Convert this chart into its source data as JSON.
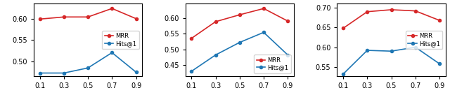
{
  "x": [
    0.1,
    0.3,
    0.5,
    0.7,
    0.9
  ],
  "plots": [
    {
      "mrr": [
        0.599,
        0.604,
        0.604,
        0.624,
        0.6
      ],
      "hits1": [
        0.472,
        0.472,
        0.484,
        0.52,
        0.474
      ],
      "ylim": [
        0.465,
        0.635
      ],
      "yticks": [
        0.5,
        0.55,
        0.6
      ],
      "legend_loc": "center right"
    },
    {
      "mrr": [
        0.535,
        0.588,
        0.61,
        0.63,
        0.59
      ],
      "hits1": [
        0.43,
        0.482,
        0.522,
        0.554,
        0.482
      ],
      "ylim": [
        0.415,
        0.645
      ],
      "yticks": [
        0.45,
        0.5,
        0.55,
        0.6
      ],
      "legend_loc": "lower right"
    },
    {
      "mrr": [
        0.648,
        0.69,
        0.695,
        0.692,
        0.668
      ],
      "hits1": [
        0.532,
        0.592,
        0.59,
        0.6,
        0.558
      ],
      "ylim": [
        0.527,
        0.71
      ],
      "yticks": [
        0.55,
        0.6,
        0.65,
        0.7
      ],
      "legend_loc": "center right"
    }
  ],
  "mrr_color": "#d62728",
  "hits1_color": "#1f77b4",
  "marker": "o",
  "markersize": 3,
  "linewidth": 1.2,
  "xlabel_vals": [
    0.1,
    0.3,
    0.5,
    0.7,
    0.9
  ],
  "tick_fontsize": 7,
  "legend_fontsize": 6
}
